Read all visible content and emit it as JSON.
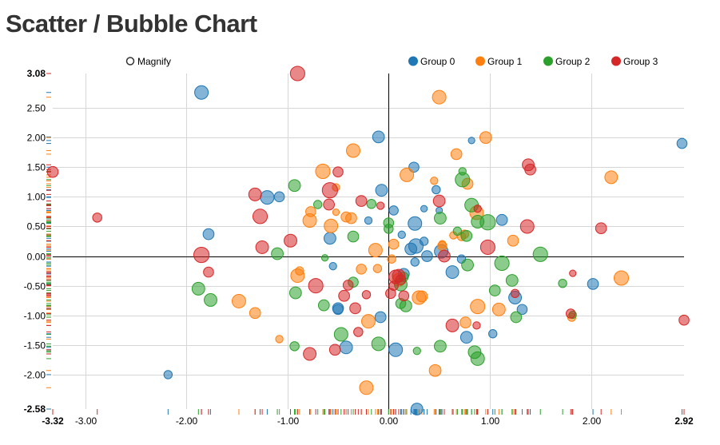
{
  "chart_data": {
    "type": "scatter",
    "title": "Scatter / Bubble Chart",
    "xlim": [
      -3.32,
      2.92
    ],
    "ylim": [
      -2.58,
      3.08
    ],
    "x_ticks": [
      "-3.00",
      "-2.00",
      "-1.00",
      "0.00",
      "1.00",
      "2.00"
    ],
    "x_tick_values": [
      -3,
      -2,
      -1,
      0,
      1,
      2
    ],
    "y_ticks": [
      "2.50",
      "2.00",
      "1.50",
      "1.00",
      "0.50",
      "0.00",
      "-0.50",
      "-1.00",
      "-1.50",
      "-2.00"
    ],
    "y_tick_values": [
      2.5,
      2,
      1.5,
      1,
      0.5,
      0,
      -0.5,
      -1,
      -1.5,
      -2
    ],
    "x_min_label": "-3.32",
    "x_max_label": "2.92",
    "y_min_label": "-2.58",
    "y_max_label": "3.08",
    "grid": true,
    "legend_position": "top-right",
    "magnify_label": "Magnify",
    "colors": [
      "#1f77b4",
      "#ff7f0e",
      "#2ca02c",
      "#d62728"
    ],
    "series": [
      {
        "name": "Group 0",
        "points": [
          [
            -1.85,
            2.76,
            0.5
          ],
          [
            -2.18,
            -2.0,
            0.2
          ],
          [
            -1.78,
            0.37,
            0.35
          ],
          [
            -1.2,
            0.99,
            0.5
          ],
          [
            -1.08,
            1.0,
            0.3
          ],
          [
            -0.58,
            0.3,
            0.4
          ],
          [
            -0.55,
            -0.17,
            0.15
          ],
          [
            -0.5,
            -0.9,
            0.3
          ],
          [
            -0.42,
            -1.54,
            0.45
          ],
          [
            -0.2,
            0.6,
            0.15
          ],
          [
            -0.1,
            2.01,
            0.4
          ],
          [
            -0.07,
            1.11,
            0.4
          ],
          [
            0.05,
            0.77,
            0.25
          ],
          [
            -0.08,
            -1.03,
            0.35
          ],
          [
            0.07,
            -1.58,
            0.5
          ],
          [
            0.15,
            -0.3,
            0.35
          ],
          [
            0.22,
            0.12,
            0.4
          ],
          [
            0.25,
            1.5,
            0.3
          ],
          [
            0.26,
            -0.1,
            0.2
          ],
          [
            0.26,
            0.55,
            0.5
          ],
          [
            0.27,
            0.17,
            0.55
          ],
          [
            0.35,
            0.25,
            0.2
          ],
          [
            0.35,
            0.8,
            0.1
          ],
          [
            0.38,
            0.0,
            0.35
          ],
          [
            0.47,
            1.12,
            0.2
          ],
          [
            0.5,
            0.77,
            0.1
          ],
          [
            0.52,
            0.08,
            0.5
          ],
          [
            0.63,
            -0.27,
            0.45
          ],
          [
            0.72,
            -0.05,
            0.2
          ],
          [
            0.77,
            -1.37,
            0.4
          ],
          [
            0.82,
            1.95,
            0.1
          ],
          [
            1.03,
            -1.31,
            0.2
          ],
          [
            1.12,
            0.61,
            0.35
          ],
          [
            1.25,
            -0.7,
            0.45
          ],
          [
            1.32,
            -0.9,
            0.3
          ],
          [
            2.02,
            -0.47,
            0.35
          ],
          [
            2.9,
            1.9,
            0.3
          ],
          [
            0.28,
            -2.58,
            0.4
          ],
          [
            -0.5,
            -0.88,
            0.35
          ],
          [
            0.13,
            0.36,
            0.15
          ]
        ]
      },
      {
        "name": "Group 1",
        "points": [
          [
            -1.48,
            -0.76,
            0.5
          ],
          [
            -1.32,
            -0.96,
            0.35
          ],
          [
            -1.08,
            -1.4,
            0.15
          ],
          [
            -0.9,
            -0.33,
            0.5
          ],
          [
            -0.88,
            -0.25,
            0.2
          ],
          [
            -0.78,
            0.6,
            0.5
          ],
          [
            -0.77,
            0.75,
            0.3
          ],
          [
            -0.65,
            1.43,
            0.55
          ],
          [
            -0.57,
            0.51,
            0.5
          ],
          [
            -0.52,
            0.74,
            0.1
          ],
          [
            -0.52,
            1.16,
            0.15
          ],
          [
            -0.42,
            0.66,
            0.3
          ],
          [
            -0.37,
            0.64,
            0.35
          ],
          [
            -0.35,
            1.78,
            0.5
          ],
          [
            -0.27,
            -0.22,
            0.3
          ],
          [
            -0.22,
            -2.22,
            0.5
          ],
          [
            -0.2,
            -1.1,
            0.5
          ],
          [
            -0.13,
            0.1,
            0.5
          ],
          [
            -0.11,
            -0.21,
            0.2
          ],
          [
            0.05,
            0.2,
            0.3
          ],
          [
            0.03,
            -0.05,
            0.2
          ],
          [
            0.1,
            -0.4,
            0.45
          ],
          [
            0.18,
            1.37,
            0.5
          ],
          [
            0.3,
            -0.7,
            0.5
          ],
          [
            0.33,
            -0.68,
            0.35
          ],
          [
            0.45,
            1.27,
            0.15
          ],
          [
            0.46,
            -1.93,
            0.4
          ],
          [
            0.5,
            2.68,
            0.5
          ],
          [
            0.53,
            0.17,
            0.25
          ],
          [
            0.53,
            0.2,
            0.15
          ],
          [
            0.64,
            0.35,
            0.15
          ],
          [
            0.67,
            1.72,
            0.35
          ],
          [
            0.72,
            0.33,
            0.2
          ],
          [
            0.75,
            0.37,
            0.2
          ],
          [
            0.76,
            -1.12,
            0.35
          ],
          [
            0.78,
            1.22,
            0.35
          ],
          [
            0.87,
            0.73,
            0.5
          ],
          [
            0.88,
            -0.85,
            0.55
          ],
          [
            0.96,
            2.0,
            0.4
          ],
          [
            1.09,
            -0.9,
            0.45
          ],
          [
            1.23,
            0.26,
            0.35
          ],
          [
            1.81,
            -1.03,
            0.2
          ],
          [
            2.2,
            1.33,
            0.45
          ],
          [
            2.3,
            -0.37,
            0.55
          ]
        ]
      },
      {
        "name": "Group 2",
        "points": [
          [
            -1.88,
            -0.55,
            0.45
          ],
          [
            -1.76,
            -0.74,
            0.45
          ],
          [
            -1.1,
            0.04,
            0.4
          ],
          [
            -0.93,
            1.19,
            0.4
          ],
          [
            -0.93,
            -1.52,
            0.25
          ],
          [
            -0.92,
            -0.62,
            0.4
          ],
          [
            -0.7,
            0.87,
            0.2
          ],
          [
            -0.64,
            -0.83,
            0.35
          ],
          [
            -0.63,
            -0.03,
            0.1
          ],
          [
            -0.35,
            -0.44,
            0.3
          ],
          [
            -0.35,
            0.33,
            0.35
          ],
          [
            -0.47,
            -1.32,
            0.5
          ],
          [
            -0.17,
            0.88,
            0.25
          ],
          [
            -0.1,
            -1.48,
            0.5
          ],
          [
            0.0,
            0.56,
            0.3
          ],
          [
            0.0,
            0.46,
            0.25
          ],
          [
            0.12,
            -0.8,
            0.3
          ],
          [
            0.12,
            -0.48,
            0.45
          ],
          [
            0.15,
            -0.35,
            0.25
          ],
          [
            0.17,
            -0.84,
            0.4
          ],
          [
            0.28,
            -1.6,
            0.15
          ],
          [
            0.51,
            0.64,
            0.4
          ],
          [
            0.51,
            -1.52,
            0.4
          ],
          [
            0.68,
            0.42,
            0.2
          ],
          [
            0.73,
            1.29,
            0.55
          ],
          [
            0.73,
            1.43,
            0.15
          ],
          [
            0.77,
            0.34,
            0.35
          ],
          [
            0.78,
            -0.15,
            0.4
          ],
          [
            0.82,
            0.86,
            0.5
          ],
          [
            0.85,
            -1.62,
            0.45
          ],
          [
            0.88,
            -1.73,
            0.5
          ],
          [
            0.88,
            0.58,
            0.45
          ],
          [
            0.98,
            0.57,
            0.6
          ],
          [
            1.05,
            -0.58,
            0.35
          ],
          [
            1.12,
            -0.12,
            0.55
          ],
          [
            1.22,
            -0.41,
            0.4
          ],
          [
            1.26,
            -1.03,
            0.35
          ],
          [
            1.5,
            0.03,
            0.55
          ],
          [
            1.72,
            -0.46,
            0.2
          ],
          [
            1.82,
            -0.99,
            0.15
          ]
        ]
      },
      {
        "name": "Group 3",
        "points": [
          [
            -3.32,
            1.42,
            0.35
          ],
          [
            -2.88,
            0.65,
            0.25
          ],
          [
            -1.85,
            0.02,
            0.6
          ],
          [
            -1.78,
            -0.27,
            0.3
          ],
          [
            -1.32,
            1.04,
            0.45
          ],
          [
            -1.27,
            0.67,
            0.55
          ],
          [
            -1.25,
            0.15,
            0.45
          ],
          [
            -0.97,
            0.26,
            0.45
          ],
          [
            -0.9,
            3.08,
            0.55
          ],
          [
            -0.72,
            -0.5,
            0.55
          ],
          [
            -0.78,
            -1.65,
            0.45
          ],
          [
            -0.59,
            0.87,
            0.35
          ],
          [
            -0.58,
            1.11,
            0.6
          ],
          [
            -0.53,
            -1.58,
            0.35
          ],
          [
            -0.5,
            1.42,
            0.3
          ],
          [
            -0.44,
            -0.67,
            0.35
          ],
          [
            -0.4,
            -0.49,
            0.3
          ],
          [
            -0.33,
            -0.88,
            0.35
          ],
          [
            -0.3,
            -1.28,
            0.25
          ],
          [
            -0.27,
            0.93,
            0.35
          ],
          [
            -0.22,
            -0.65,
            0.2
          ],
          [
            -0.08,
            0.85,
            0.15
          ],
          [
            0.02,
            -0.63,
            0.3
          ],
          [
            0.05,
            -0.5,
            0.25
          ],
          [
            0.07,
            -0.35,
            0.5
          ],
          [
            0.1,
            -0.33,
            0.45
          ],
          [
            0.12,
            -0.4,
            0.3
          ],
          [
            0.15,
            -0.67,
            0.3
          ],
          [
            0.5,
            0.93,
            0.4
          ],
          [
            0.55,
            0.0,
            0.4
          ],
          [
            0.63,
            -1.17,
            0.45
          ],
          [
            0.87,
            -1.17,
            0.15
          ],
          [
            0.88,
            0.8,
            0.15
          ],
          [
            0.98,
            0.15,
            0.55
          ],
          [
            1.25,
            -0.63,
            0.2
          ],
          [
            1.37,
            0.5,
            0.5
          ],
          [
            1.38,
            1.54,
            0.4
          ],
          [
            1.4,
            1.46,
            0.35
          ],
          [
            1.8,
            -0.97,
            0.25
          ],
          [
            1.82,
            -0.29,
            0.1
          ],
          [
            2.1,
            0.47,
            0.35
          ],
          [
            2.92,
            -1.08,
            0.3
          ]
        ]
      }
    ]
  }
}
